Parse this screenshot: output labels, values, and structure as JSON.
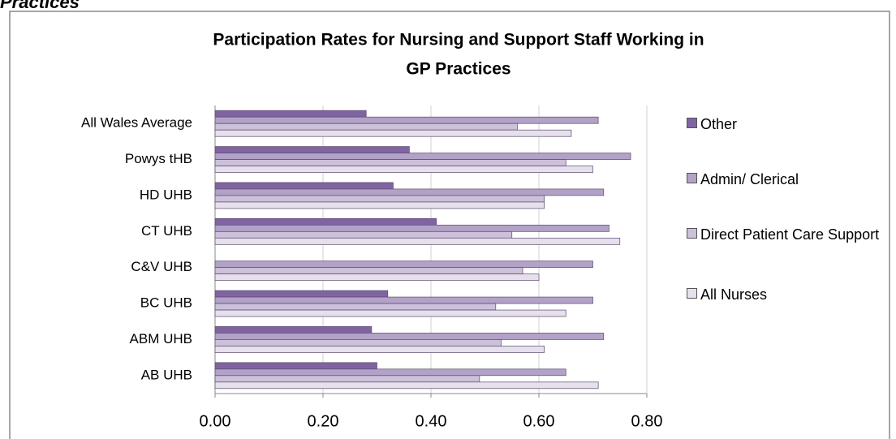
{
  "heading": "Practices",
  "chart_data": {
    "type": "hbar",
    "title": [
      "Participation Rates for Nursing and Support Staff Working in",
      "GP Practices"
    ],
    "categories": [
      "All Wales Average",
      "Powys tHB",
      "HD UHB",
      "CT UHB",
      "C&V UHB",
      "BC UHB",
      "ABM UHB",
      "AB UHB"
    ],
    "series": [
      {
        "name": "Other",
        "color": "#8064a2",
        "values": [
          0.28,
          0.36,
          0.33,
          0.41,
          null,
          0.32,
          0.29,
          0.3
        ]
      },
      {
        "name": "Admin/ Clerical",
        "color": "#b3a2c7",
        "values": [
          0.71,
          0.77,
          0.72,
          0.73,
          0.7,
          0.7,
          0.72,
          0.65
        ]
      },
      {
        "name": "Direct Patient Care Support",
        "color": "#ccc0da",
        "values": [
          0.56,
          0.65,
          0.61,
          0.55,
          0.57,
          0.52,
          0.53,
          0.49
        ]
      },
      {
        "name": "All Nurses",
        "color": "#e6e0ec",
        "values": [
          0.66,
          0.7,
          0.61,
          0.75,
          0.6,
          0.65,
          0.61,
          0.71
        ]
      }
    ],
    "xlim": [
      0,
      0.8
    ],
    "xticks": [
      {
        "value": 0,
        "label": "0.00"
      },
      {
        "value": 0.2,
        "label": "0.20"
      },
      {
        "value": 0.4,
        "label": "0.40"
      },
      {
        "value": 0.6,
        "label": "0.60"
      },
      {
        "value": 0.8,
        "label": "0.80"
      }
    ],
    "grid": true,
    "legend": "right"
  }
}
